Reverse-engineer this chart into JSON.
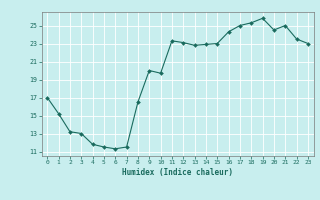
{
  "x": [
    0,
    1,
    2,
    3,
    4,
    5,
    6,
    7,
    8,
    9,
    10,
    11,
    12,
    13,
    14,
    15,
    16,
    17,
    18,
    19,
    20,
    21,
    22,
    23
  ],
  "y": [
    17.0,
    15.2,
    13.2,
    13.0,
    11.8,
    11.5,
    11.3,
    11.5,
    16.5,
    20.0,
    19.7,
    23.3,
    23.1,
    22.8,
    22.9,
    23.0,
    24.3,
    25.0,
    25.3,
    25.8,
    24.5,
    25.0,
    23.5,
    23.0
  ],
  "xlabel": "Humidex (Indice chaleur)",
  "xlim": [
    -0.5,
    23.5
  ],
  "ylim": [
    10.5,
    26.5
  ],
  "yticks": [
    11,
    13,
    15,
    17,
    19,
    21,
    23,
    25
  ],
  "xticks": [
    0,
    1,
    2,
    3,
    4,
    5,
    6,
    7,
    8,
    9,
    10,
    11,
    12,
    13,
    14,
    15,
    16,
    17,
    18,
    19,
    20,
    21,
    22,
    23
  ],
  "line_color": "#1a6b5e",
  "marker_color": "#1a6b5e",
  "bg_color": "#c8eeee",
  "grid_color": "#ffffff",
  "tick_label_color": "#1a6b5e",
  "axis_color": "#7a7a7a"
}
